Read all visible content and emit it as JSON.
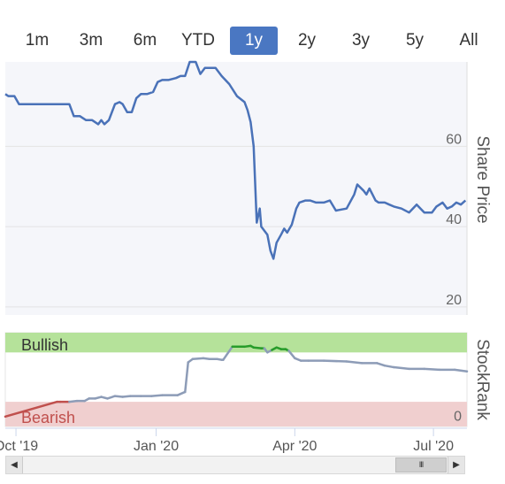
{
  "range_selector": {
    "buttons": [
      "1m",
      "3m",
      "6m",
      "YTD",
      "1y",
      "2y",
      "3y",
      "5y",
      "All"
    ],
    "selected": "1y"
  },
  "scrollbar": {
    "left_arrow": "◀",
    "right_arrow": "▶",
    "thumb_grip": "III"
  },
  "chart_data": [
    {
      "type": "line",
      "ylabel": "Share Price",
      "yticks": [
        20,
        40,
        60
      ],
      "ylim": [
        18,
        81
      ],
      "color": "#4a72b8",
      "x": [
        "2019-09-24",
        "2019-09-26",
        "2019-09-30",
        "2019-10-03",
        "2019-10-08",
        "2019-10-15",
        "2019-10-22",
        "2019-10-30",
        "2019-11-05",
        "2019-11-08",
        "2019-11-12",
        "2019-11-16",
        "2019-11-20",
        "2019-11-24",
        "2019-11-26",
        "2019-11-28",
        "2019-12-01",
        "2019-12-05",
        "2019-12-08",
        "2019-12-10",
        "2019-12-13",
        "2019-12-16",
        "2019-12-19",
        "2019-12-22",
        "2019-12-26",
        "2019-12-30",
        "2020-01-02",
        "2020-01-05",
        "2020-01-09",
        "2020-01-14",
        "2020-01-17",
        "2020-01-20",
        "2020-01-23",
        "2020-01-27",
        "2020-01-30",
        "2020-02-02",
        "2020-02-05",
        "2020-02-09",
        "2020-02-13",
        "2020-02-18",
        "2020-02-23",
        "2020-02-28",
        "2020-03-01",
        "2020-03-03",
        "2020-03-05",
        "2020-03-07",
        "2020-03-09",
        "2020-03-10",
        "2020-03-12",
        "2020-03-14",
        "2020-03-16",
        "2020-03-18",
        "2020-03-20",
        "2020-03-23",
        "2020-03-25",
        "2020-03-27",
        "2020-03-30",
        "2020-04-02",
        "2020-04-04",
        "2020-04-08",
        "2020-04-11",
        "2020-04-15",
        "2020-04-20",
        "2020-04-24",
        "2020-04-28",
        "2020-05-05",
        "2020-05-10",
        "2020-05-12",
        "2020-05-16",
        "2020-05-18",
        "2020-05-20",
        "2020-05-22",
        "2020-05-24",
        "2020-05-26",
        "2020-05-28",
        "2020-05-30",
        "2020-06-02",
        "2020-06-05",
        "2020-06-10",
        "2020-06-15",
        "2020-06-20",
        "2020-06-25",
        "2020-06-30",
        "2020-07-03",
        "2020-07-07",
        "2020-07-10",
        "2020-07-13",
        "2020-07-16",
        "2020-07-19",
        "2020-07-22"
      ],
      "y": [
        73,
        72.5,
        72.5,
        70.5,
        70.5,
        70.5,
        70.5,
        70.5,
        70.5,
        67.5,
        67.5,
        66.5,
        66.5,
        65.5,
        66.5,
        65.5,
        66.5,
        70.5,
        71,
        70.5,
        68.5,
        68.5,
        72,
        73,
        73,
        73.5,
        76,
        76.5,
        76.5,
        77,
        77.5,
        77.5,
        81,
        81,
        78,
        79.5,
        79.5,
        79.5,
        77.5,
        75.5,
        72.5,
        71,
        69,
        66,
        60,
        41,
        44.5,
        40,
        39,
        38,
        34,
        32,
        36,
        38,
        39.5,
        38.5,
        40.5,
        44.5,
        46,
        46.5,
        46.5,
        46,
        46,
        46.5,
        44,
        44.5,
        48,
        50.5,
        49,
        48,
        49.5,
        48,
        46.5,
        46,
        46,
        46,
        45.5,
        45,
        44.5,
        43.5,
        45.5,
        43.5,
        43.5,
        45,
        46,
        44.5,
        45,
        46,
        45.5,
        46.5
      ]
    },
    {
      "type": "line",
      "ylabel": "StockRank",
      "yticks": [
        0
      ],
      "band_labels": [
        "Bullish",
        "Bearish"
      ],
      "band_colors": {
        "bullish": "#b5e29a",
        "bearish": "#f0cfcf"
      },
      "segment_colors": {
        "bearish": "#c0504d",
        "neutral": "#8d9cb7",
        "bullish": "#279c2a"
      },
      "thresholds": [
        20,
        80
      ],
      "ylim": [
        -10,
        104
      ],
      "x": [
        "2019-09-24",
        "2019-10-28",
        "2019-10-30",
        "2019-11-05",
        "2019-11-10",
        "2019-11-15",
        "2019-11-18",
        "2019-11-22",
        "2019-11-26",
        "2019-11-30",
        "2019-12-05",
        "2019-12-10",
        "2019-12-15",
        "2019-12-22",
        "2019-12-29",
        "2020-01-05",
        "2020-01-15",
        "2020-01-20",
        "2020-01-22",
        "2020-01-25",
        "2020-02-01",
        "2020-02-05",
        "2020-02-10",
        "2020-02-13",
        "2020-02-14",
        "2020-02-20",
        "2020-02-28",
        "2020-03-03",
        "2020-03-05",
        "2020-03-10",
        "2020-03-12",
        "2020-03-14",
        "2020-03-17",
        "2020-03-20",
        "2020-03-23",
        "2020-03-26",
        "2020-03-28",
        "2020-04-01",
        "2020-04-05",
        "2020-04-10",
        "2020-04-20",
        "2020-05-05",
        "2020-05-15",
        "2020-05-25",
        "2020-05-30",
        "2020-06-05",
        "2020-06-15",
        "2020-06-25",
        "2020-07-05",
        "2020-07-15",
        "2020-07-23"
      ],
      "y": [
        2,
        20,
        20,
        20,
        21,
        21,
        24,
        24,
        26,
        24,
        27,
        26,
        27,
        27,
        27,
        28,
        28,
        32,
        68,
        72,
        73,
        72,
        72,
        71,
        71,
        87,
        87,
        88,
        86,
        85,
        85,
        80,
        83,
        86,
        84,
        84,
        82,
        73,
        70,
        70,
        70,
        69,
        67,
        67,
        64,
        62,
        60,
        60,
        59,
        59,
        57
      ]
    }
  ],
  "x_axis": {
    "tick_labels": [
      "Oct '19",
      "Jan '20",
      "Apr '20",
      "Jul '20"
    ],
    "tick_dates": [
      "2019-10-01",
      "2020-01-01",
      "2020-04-01",
      "2020-07-01"
    ],
    "range": [
      "2019-09-24",
      "2020-07-23"
    ]
  }
}
